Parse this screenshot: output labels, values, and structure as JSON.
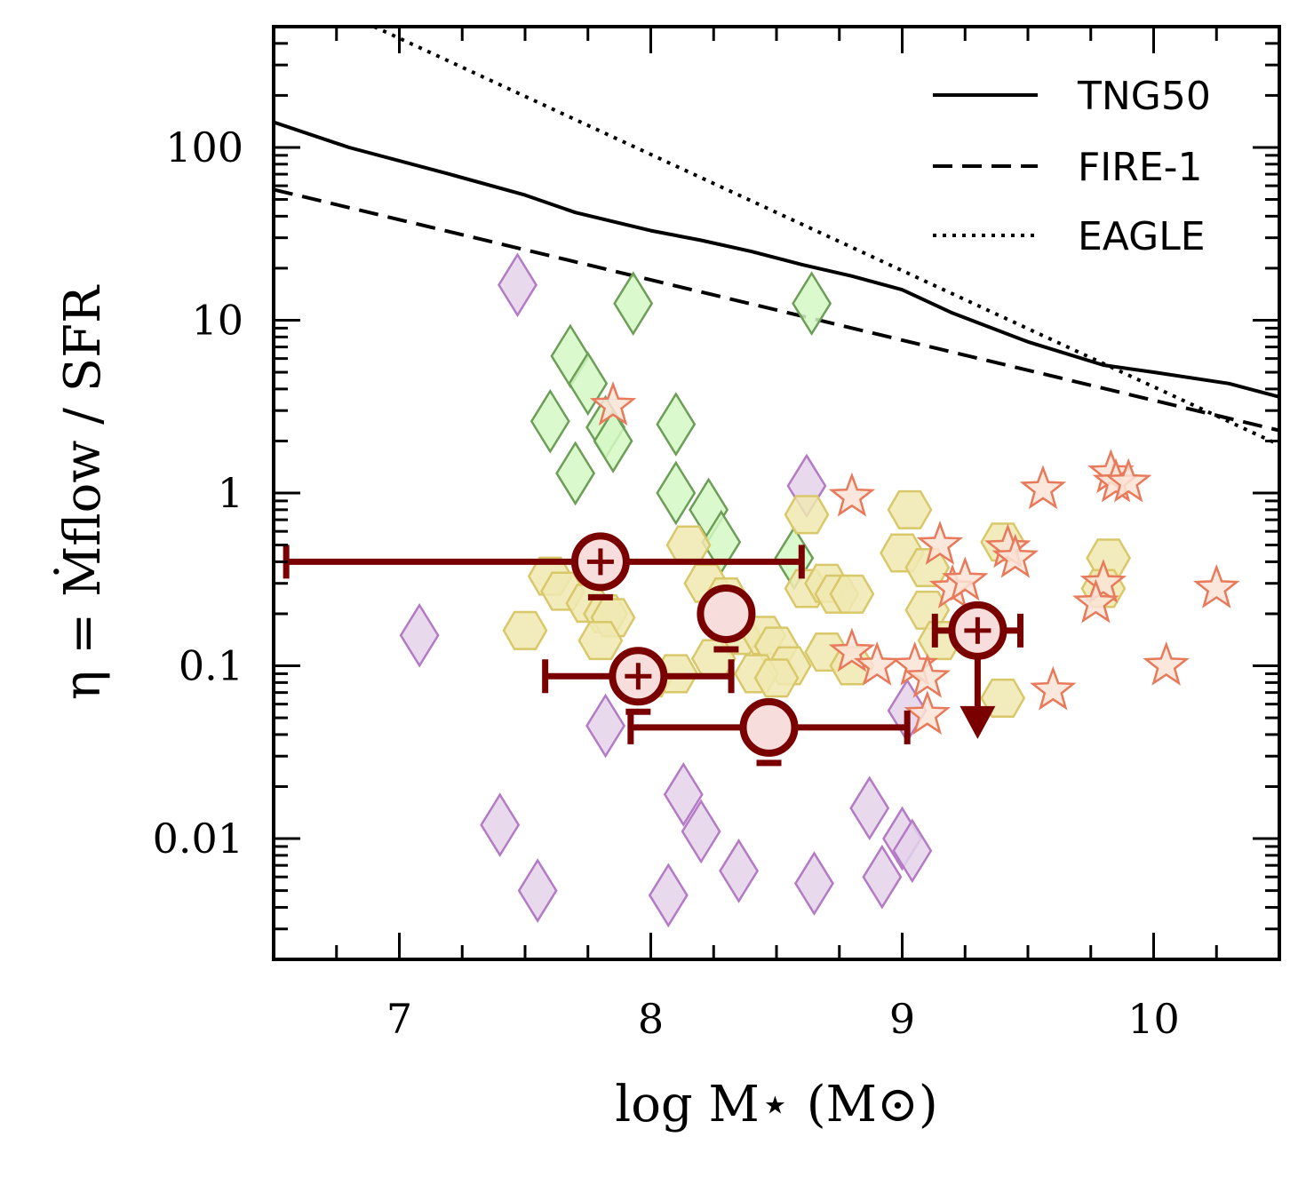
{
  "chart_data": {
    "type": "scatter",
    "xlabel": "log  M⋆ (M⊙)",
    "ylabel": "η = Ṁflow / SFR",
    "xlim": [
      6.5,
      10.5
    ],
    "ylim": [
      0.002,
      500
    ],
    "yscale": "log",
    "grid": false,
    "legend_position": "top-right",
    "x_ticks": [
      7,
      8,
      9,
      10
    ],
    "x_tick_labels": [
      "7",
      "8",
      "9",
      "10"
    ],
    "y_ticks": [
      0.01,
      0.1,
      1,
      10,
      100
    ],
    "y_tick_labels": [
      "0.01",
      "0.1",
      "1",
      "10",
      "100"
    ],
    "lines": [
      {
        "name": "TNG50",
        "style": "solid",
        "color": "#000000",
        "x": [
          6.5,
          6.8,
          7.2,
          7.5,
          7.7,
          8.0,
          8.2,
          8.4,
          8.6,
          8.8,
          9.0,
          9.2,
          9.5,
          9.8,
          10.0,
          10.3,
          10.5
        ],
        "y": [
          140,
          100,
          70,
          53,
          42,
          33,
          29,
          25,
          21,
          18,
          15,
          11,
          7.5,
          5.5,
          5.0,
          4.3,
          3.6
        ]
      },
      {
        "name": "FIRE-1",
        "style": "dashed",
        "color": "#000000",
        "x": [
          6.5,
          10.5
        ],
        "y": [
          57,
          2.3
        ]
      },
      {
        "name": "EAGLE",
        "style": "dotted",
        "color": "#000000",
        "x": [
          6.9,
          10.5
        ],
        "y": [
          500,
          1.9
        ]
      }
    ],
    "series": [
      {
        "marker": "diamond",
        "color": "#b57ac6",
        "fill": "#e4d2ea",
        "points": [
          [
            7.47,
            16
          ],
          [
            7.08,
            0.15
          ],
          [
            7.82,
            0.045
          ],
          [
            7.4,
            0.012
          ],
          [
            7.55,
            0.005
          ],
          [
            8.13,
            0.018
          ],
          [
            8.2,
            0.011
          ],
          [
            8.35,
            0.0065
          ],
          [
            8.07,
            0.0047
          ],
          [
            8.62,
            1.1
          ],
          [
            8.65,
            0.0055
          ],
          [
            8.87,
            0.015
          ],
          [
            8.92,
            0.006
          ],
          [
            9.0,
            0.01
          ],
          [
            9.04,
            0.0085
          ],
          [
            9.02,
            0.055
          ]
        ]
      },
      {
        "marker": "diamond",
        "color": "#6d9e58",
        "fill": "#d4f8c4",
        "points": [
          [
            7.93,
            12.5
          ],
          [
            8.64,
            12.5
          ],
          [
            7.68,
            6.2
          ],
          [
            7.75,
            4.3
          ],
          [
            7.6,
            2.6
          ],
          [
            7.82,
            2.4
          ],
          [
            7.85,
            2.0
          ],
          [
            8.1,
            2.5
          ],
          [
            7.7,
            1.3
          ],
          [
            8.1,
            1.0
          ],
          [
            8.23,
            0.8
          ],
          [
            8.28,
            0.52
          ],
          [
            8.57,
            0.42
          ]
        ]
      },
      {
        "marker": "hexagon",
        "color": "#d9c86a",
        "fill": "#f0e9b2",
        "points": [
          [
            8.62,
            0.75
          ],
          [
            8.15,
            0.5
          ],
          [
            7.6,
            0.33
          ],
          [
            7.65,
            0.27
          ],
          [
            7.75,
            0.23
          ],
          [
            7.82,
            0.2
          ],
          [
            7.85,
            0.19
          ],
          [
            7.8,
            0.14
          ],
          [
            7.5,
            0.16
          ],
          [
            8.22,
            0.3
          ],
          [
            8.3,
            0.25
          ],
          [
            8.35,
            0.15
          ],
          [
            8.45,
            0.15
          ],
          [
            8.5,
            0.13
          ],
          [
            8.55,
            0.1
          ],
          [
            8.7,
            0.12
          ],
          [
            8.8,
            0.1
          ],
          [
            8.62,
            0.28
          ],
          [
            8.7,
            0.3
          ],
          [
            8.74,
            0.26
          ],
          [
            8.8,
            0.26
          ],
          [
            8.25,
            0.11
          ],
          [
            8.42,
            0.09
          ],
          [
            8.5,
            0.085
          ],
          [
            8.0,
            0.085
          ],
          [
            8.1,
            0.09
          ],
          [
            9.03,
            0.8
          ],
          [
            9.0,
            0.45
          ],
          [
            9.1,
            0.37
          ],
          [
            9.1,
            0.21
          ],
          [
            9.15,
            0.14
          ],
          [
            9.4,
            0.52
          ],
          [
            9.82,
            0.42
          ],
          [
            9.8,
            0.28
          ],
          [
            9.4,
            0.065
          ]
        ]
      },
      {
        "marker": "star",
        "color": "#e8795a",
        "fill": "#fbe3d6",
        "points": [
          [
            7.85,
            3.2
          ],
          [
            8.8,
            0.95
          ],
          [
            9.15,
            0.5
          ],
          [
            9.2,
            0.28
          ],
          [
            9.25,
            0.31
          ],
          [
            9.42,
            0.48
          ],
          [
            9.45,
            0.42
          ],
          [
            9.56,
            1.05
          ],
          [
            9.83,
            1.3
          ],
          [
            9.85,
            1.15
          ],
          [
            9.9,
            1.15
          ],
          [
            9.8,
            0.3
          ],
          [
            9.77,
            0.23
          ],
          [
            10.25,
            0.28
          ],
          [
            10.05,
            0.1
          ],
          [
            9.6,
            0.072
          ],
          [
            9.05,
            0.1
          ],
          [
            9.1,
            0.085
          ],
          [
            8.8,
            0.12
          ],
          [
            8.9,
            0.1
          ],
          [
            9.1,
            0.052
          ]
        ]
      }
    ],
    "measurements": [
      {
        "x": 7.8,
        "y": 0.4,
        "xerr": [
          1.25,
          0.8
        ],
        "style": "circle-plus",
        "upper_limit": false
      },
      {
        "x": 8.3,
        "y": 0.2,
        "xerr": null,
        "style": "circle",
        "upper_limit": false
      },
      {
        "x": 7.95,
        "y": 0.087,
        "xerr": [
          0.37,
          0.37
        ],
        "style": "circle-plus",
        "upper_limit": false
      },
      {
        "x": 8.47,
        "y": 0.044,
        "xerr": [
          0.55,
          0.55
        ],
        "style": "circle",
        "upper_limit": false
      },
      {
        "x": 9.3,
        "y": 0.16,
        "xerr": [
          0.17,
          0.17
        ],
        "style": "circle-plus",
        "upper_limit": true
      }
    ]
  }
}
